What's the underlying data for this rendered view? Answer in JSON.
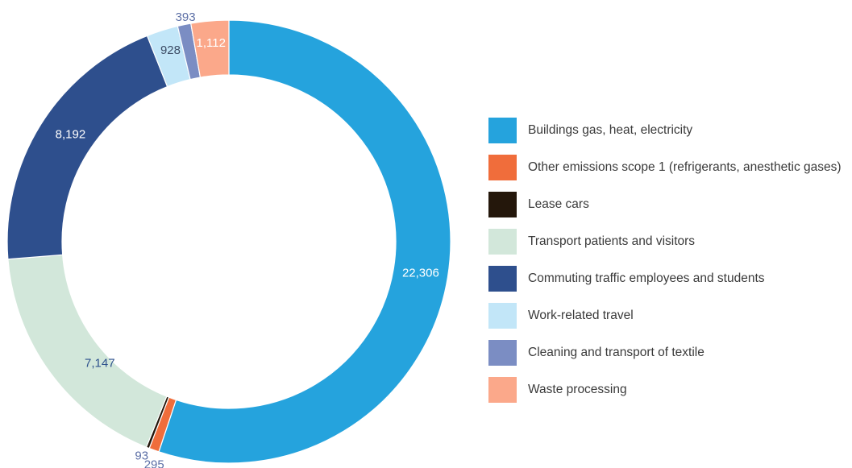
{
  "chart_data": {
    "type": "pie",
    "donut": true,
    "title": "",
    "legend_position": "right",
    "series": [
      {
        "name": "Buildings gas, heat, electricity",
        "value": 22306,
        "label": "22,306",
        "color": "#25a3dd",
        "label_color": "#ffffff"
      },
      {
        "name": "Other emissions scope 1 (refrigerants, anesthetic gases)",
        "value": 295,
        "label": "295",
        "color": "#f06d3b",
        "label_color": "#5c6fa6"
      },
      {
        "name": "Lease cars",
        "value": 93,
        "label": "93",
        "color": "#24170b",
        "label_color": "#5c6fa6"
      },
      {
        "name": "Transport patients and visitors",
        "value": 7147,
        "label": "7,147",
        "color": "#d2e7da",
        "label_color": "#2e528d"
      },
      {
        "name": "Commuting traffic employees and students",
        "value": 8192,
        "label": "8,192",
        "color": "#2e4f8d",
        "label_color": "#ffffff"
      },
      {
        "name": "Work-related travel",
        "value": 928,
        "label": "928",
        "color": "#c2e6f8",
        "label_color": "#3d4d66"
      },
      {
        "name": "Cleaning and transport of textile",
        "value": 393,
        "label": "393",
        "color": "#7b8dc3",
        "label_color": "#5c6fa6"
      },
      {
        "name": "Waste processing",
        "value": 1112,
        "label": "1,112",
        "color": "#fba88a",
        "label_color": "#ffffff"
      }
    ]
  }
}
